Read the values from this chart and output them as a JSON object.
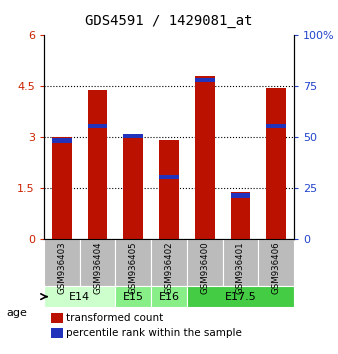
{
  "title": "GDS4591 / 1429081_at",
  "samples": [
    "GSM936403",
    "GSM936404",
    "GSM936405",
    "GSM936402",
    "GSM936400",
    "GSM936401",
    "GSM936406"
  ],
  "red_values": [
    3.0,
    4.4,
    3.1,
    2.93,
    4.8,
    1.4,
    4.45
  ],
  "blue_bottoms": [
    2.84,
    3.27,
    2.97,
    1.77,
    4.62,
    1.22,
    3.27
  ],
  "blue_heights": [
    0.13,
    0.13,
    0.13,
    0.13,
    0.13,
    0.13,
    0.13
  ],
  "ylim_left": [
    0,
    6
  ],
  "ylim_right": [
    0,
    100
  ],
  "yticks_left": [
    0,
    1.5,
    3.0,
    4.5,
    6
  ],
  "yticks_right": [
    0,
    25,
    50,
    75,
    100
  ],
  "ytick_labels_left": [
    "0",
    "1.5",
    "3",
    "4.5",
    "6"
  ],
  "ytick_labels_right": [
    "0",
    "25",
    "50",
    "75",
    "100%"
  ],
  "age_groups": [
    {
      "label": "E14",
      "start": 0,
      "end": 2,
      "color": "#ccffcc"
    },
    {
      "label": "E15",
      "start": 2,
      "end": 3,
      "color": "#88ee88"
    },
    {
      "label": "E16",
      "start": 3,
      "end": 4,
      "color": "#88ee88"
    },
    {
      "label": "E17.5",
      "start": 4,
      "end": 7,
      "color": "#44cc44"
    }
  ],
  "bar_color": "#bb1100",
  "blue_color": "#2233bb",
  "bg_color": "#bbbbbb",
  "legend_red_label": "transformed count",
  "legend_blue_label": "percentile rank within the sample"
}
